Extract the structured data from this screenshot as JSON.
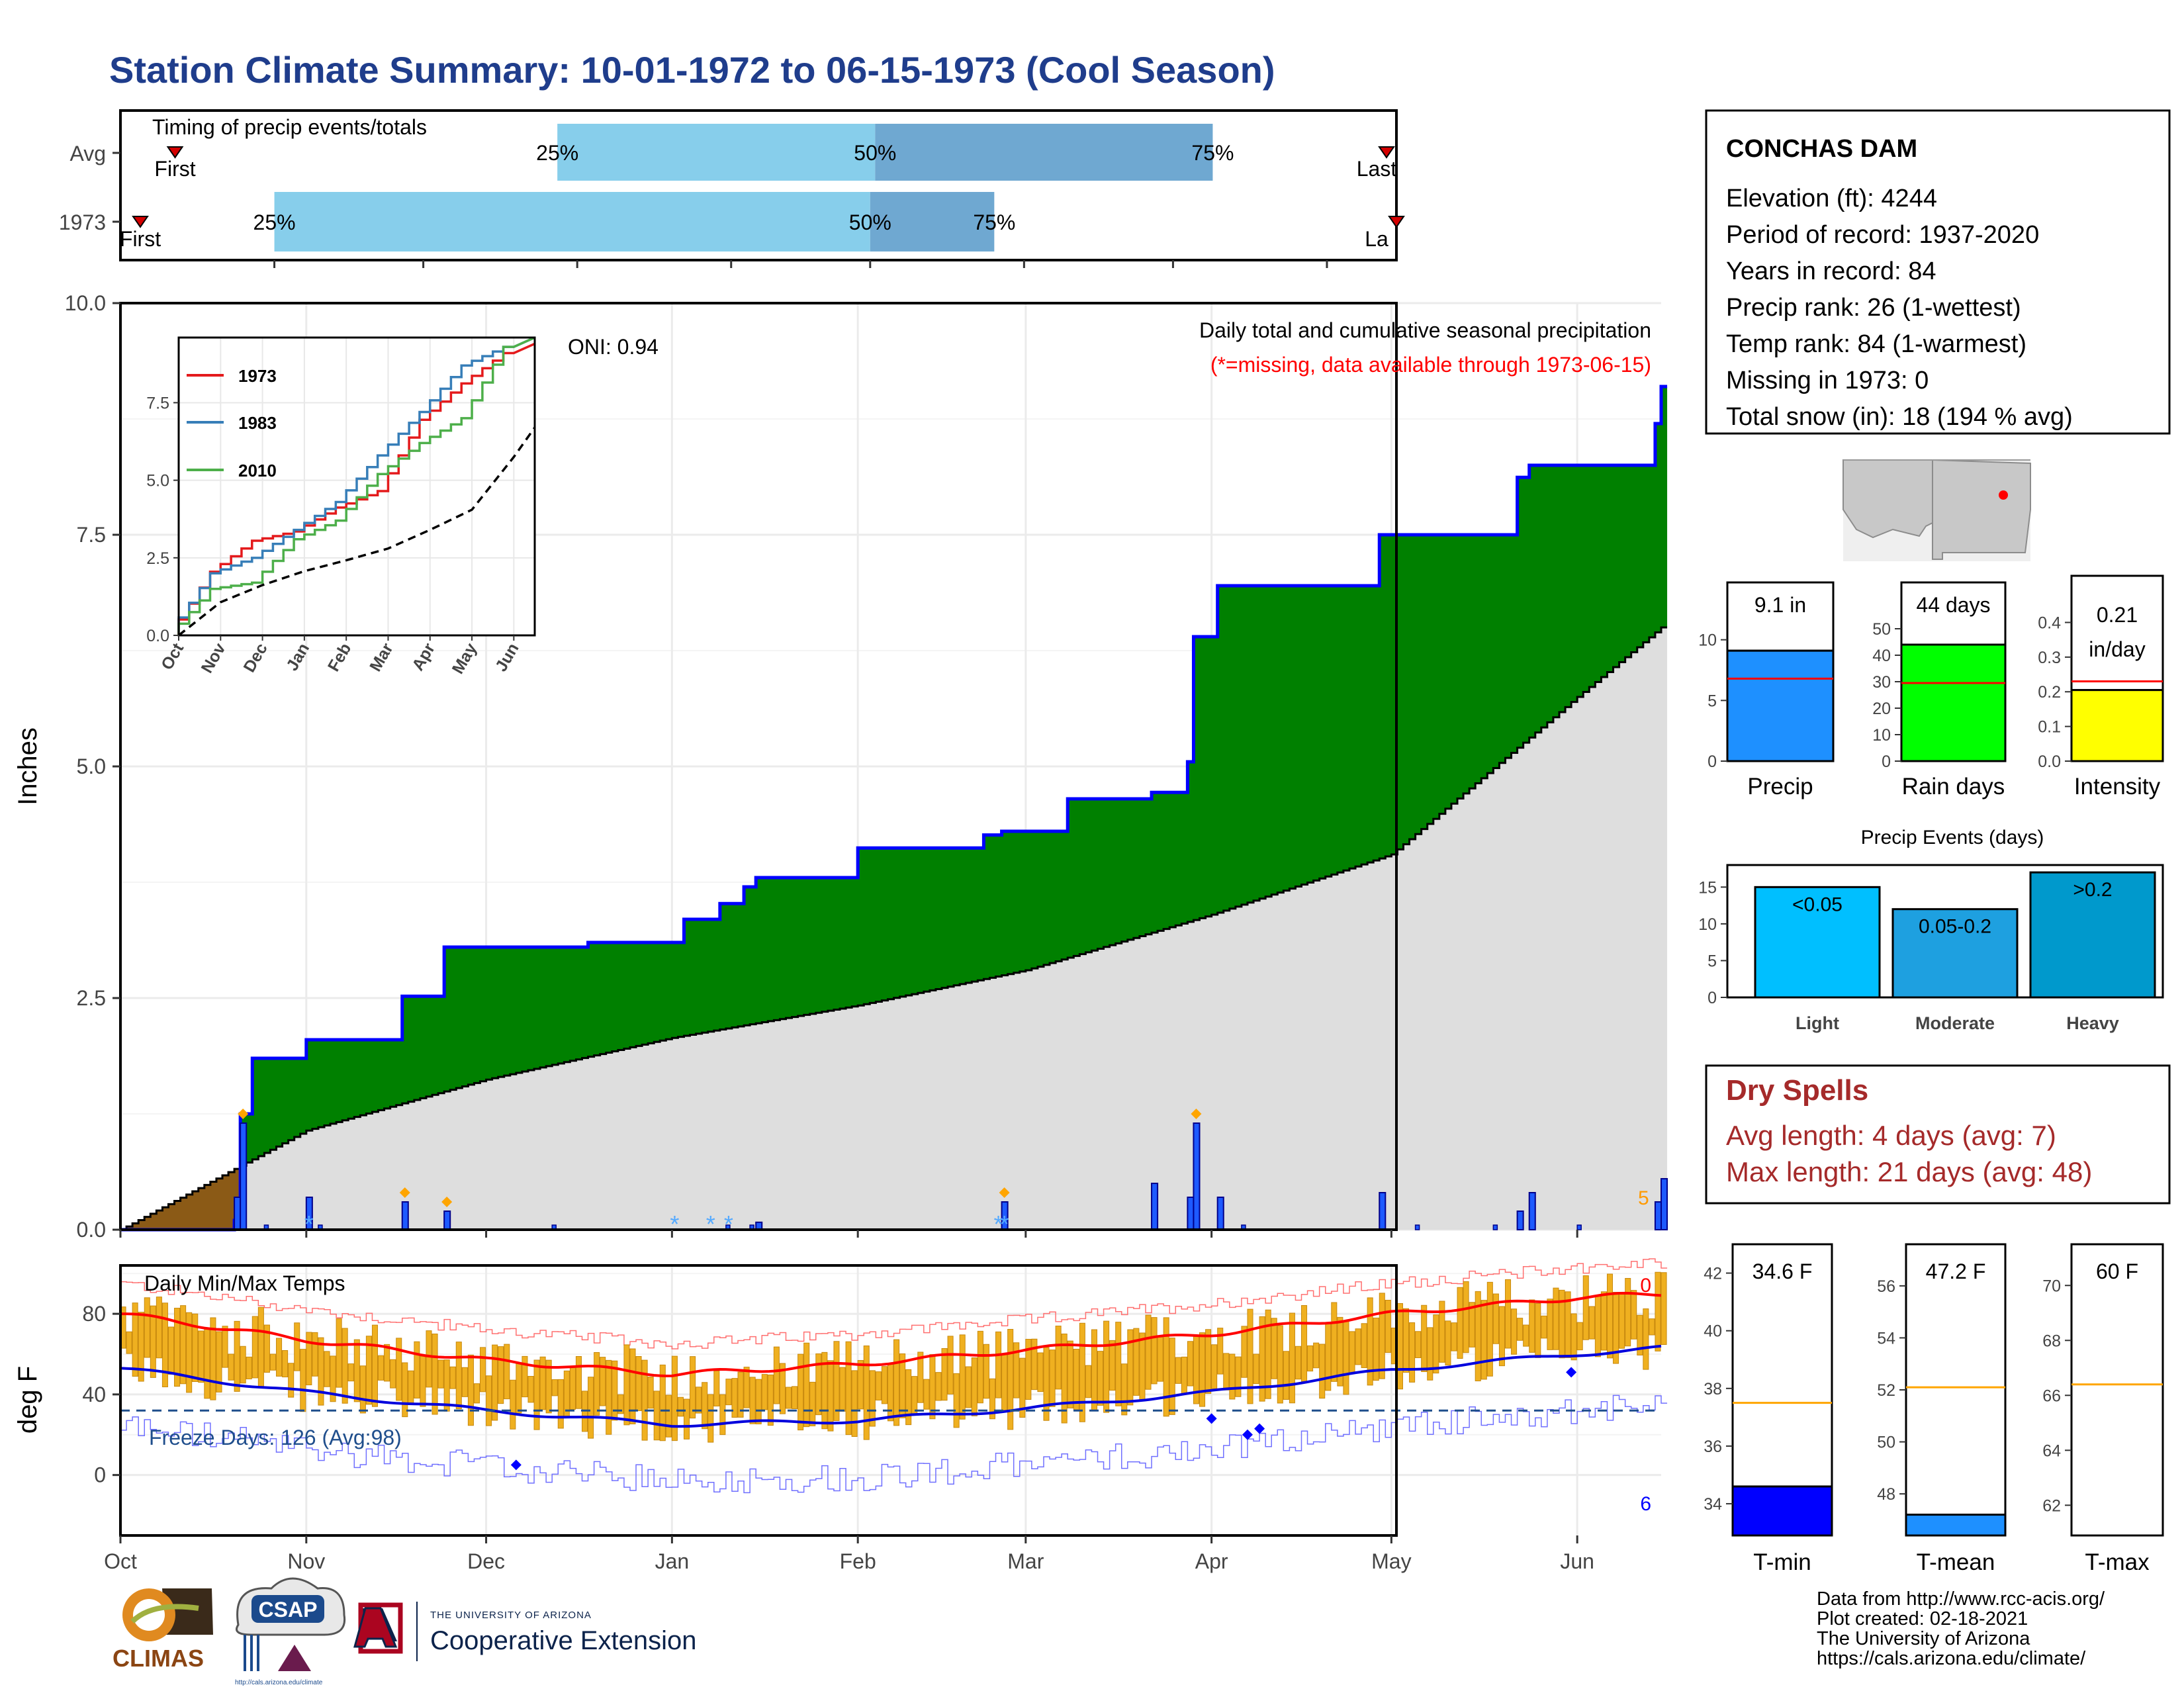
{
  "title": "Station Climate Summary: 10-01-1972 to 06-15-1973 (Cool Season)",
  "colors": {
    "title": "#1f3d8c",
    "light_blue": "#87ceeb",
    "steel_blue": "#6fa8d1",
    "green": "#008000",
    "grey_fill": "#dedede",
    "brown": "#8b5a16",
    "blue": "#0000ff",
    "red": "#ff0000",
    "orange": "#f0b020",
    "dry_red": "#a52a2a"
  },
  "timing_panel": {
    "label": "Timing of precip events/totals",
    "rows": [
      {
        "name": "Avg",
        "first_label": "First",
        "last_label": "Last",
        "first": "10-12",
        "last": "06-13",
        "p25": "12-28",
        "p50": "03-02",
        "p75": "05-09"
      },
      {
        "name": "1973",
        "first_label": "First",
        "last_label": "La",
        "first": "10-05",
        "last": "06-15",
        "p25": "11-01",
        "p50": "03-01",
        "p75": "03-26"
      }
    ],
    "pct_labels": [
      "25%",
      "50%",
      "75%"
    ]
  },
  "precip_panel": {
    "ylabel": "Inches",
    "yticks": [
      "0.0",
      "2.5",
      "5.0",
      "7.5",
      "10.0"
    ],
    "title_line1": "Daily total and cumulative seasonal precipitation",
    "title_line2": "(*=missing, data available through 1973-06-15)",
    "oni": "ONI: 0.94",
    "corner_count": "5"
  },
  "x_months": [
    "Oct",
    "Nov",
    "Dec",
    "Jan",
    "Feb",
    "Mar",
    "Apr",
    "May",
    "Jun"
  ],
  "inset": {
    "yticks": [
      "0.0",
      "2.5",
      "5.0",
      "7.5"
    ],
    "xticks": [
      "Oct",
      "Nov",
      "Dec",
      "Jan",
      "Feb",
      "Mar",
      "Apr",
      "May",
      "Jun"
    ],
    "legend": [
      {
        "name": "1973",
        "color": "#e41a1c"
      },
      {
        "name": "1983",
        "color": "#377eb8"
      },
      {
        "name": "2010",
        "color": "#4daf4a"
      }
    ]
  },
  "temp_panel": {
    "label": "Daily Min/Max Temps",
    "ylabel": "deg F",
    "yticks": [
      "0",
      "40",
      "80"
    ],
    "freeze_text": "Freeze Days: 126 (Avg:98)",
    "top_count": "0",
    "bottom_count": "6"
  },
  "station_box": {
    "name": "CONCHAS DAM",
    "lines": [
      "Elevation (ft): 4244",
      "Period of record: 1937-2020",
      "Years in record: 84",
      "Precip rank: 26 (1-wettest)",
      "Temp rank: 84 (1-warmest)",
      "Missing in 1973: 0",
      "Total snow (in): 18 (194 % avg)"
    ]
  },
  "mini_bars": [
    {
      "label": "Precip",
      "value_text": "9.1 in",
      "value": 9.1,
      "avg": 6.8,
      "ymax": 12,
      "yticks": [
        "0",
        "5",
        "10"
      ],
      "tick_vals": [
        0,
        5,
        10
      ],
      "color": "#1e90ff"
    },
    {
      "label": "Rain days",
      "value_text": "44 days",
      "value": 44,
      "avg": 29.5,
      "ymax": 55,
      "yticks": [
        "0",
        "10",
        "20",
        "30",
        "40",
        "50"
      ],
      "tick_vals": [
        0,
        10,
        20,
        30,
        40,
        50
      ],
      "color": "#00ff00"
    },
    {
      "label": "Intensity",
      "value_text": "0.21",
      "value_text2": "in/day",
      "value": 0.205,
      "avg": 0.23,
      "ymax": 0.42,
      "yticks": [
        "0.0",
        "0.1",
        "0.2",
        "0.3",
        "0.4"
      ],
      "tick_vals": [
        0,
        0.1,
        0.2,
        0.3,
        0.4
      ],
      "color": "#ffff00"
    }
  ],
  "precip_events": {
    "title": "Precip Events (days)",
    "yticks": [
      "0",
      "5",
      "10",
      "15"
    ],
    "tick_vals": [
      0,
      5,
      10,
      15
    ],
    "ymax": 18,
    "bars": [
      {
        "category": "Light",
        "label": "<0.05",
        "value": 15,
        "color": "#00bfff"
      },
      {
        "category": "Moderate",
        "label": "0.05-0.2",
        "value": 12,
        "color": "#1ea0e0"
      },
      {
        "category": "Heavy",
        "label": ">0.2",
        "value": 17,
        "color": "#0099cc"
      }
    ]
  },
  "dry_spells": {
    "title": "Dry Spells",
    "avg_line": "Avg length: 4 days (avg: 7)",
    "max_line": "Max length: 21 days (avg: 48)"
  },
  "temp_bars": [
    {
      "label": "T-min",
      "value_text": "34.6 F",
      "value": 34.6,
      "avg": 37.5,
      "ymin": 32.9,
      "ymax": 43,
      "yticks": [
        "34",
        "36",
        "38",
        "40",
        "42"
      ],
      "tick_vals": [
        34,
        36,
        38,
        40,
        42
      ],
      "color": "#0000ff"
    },
    {
      "label": "T-mean",
      "value_text": "47.2 F",
      "value": 47.2,
      "avg": 52.1,
      "ymin": 46.4,
      "ymax": 57.6,
      "yticks": [
        "48",
        "50",
        "52",
        "54",
        "56"
      ],
      "tick_vals": [
        48,
        50,
        52,
        54,
        56
      ],
      "color": "#1e90ff"
    },
    {
      "label": "T-max",
      "value_text": "60 F",
      "value": 60,
      "avg": 66.4,
      "ymin": 60.9,
      "ymax": 71.5,
      "yticks": [
        "62",
        "64",
        "66",
        "68",
        "70"
      ],
      "tick_vals": [
        62,
        64,
        66,
        68,
        70
      ],
      "color": "#ff0000"
    }
  ],
  "credits": [
    "Data from http://www.rcc-acis.org/",
    "Plot created: 02-18-2021",
    "The University of Arizona",
    "https://cals.arizona.edu/climate/"
  ],
  "logos": {
    "climas": "CLIMAS",
    "csap": "CSAP",
    "csap_url": "http://cals.arizona.edu/climate",
    "ua_small": "THE UNIVERSITY OF ARIZONA",
    "ua_big": "Cooperative Extension"
  },
  "chart_data": [
    {
      "type": "area",
      "title": "Daily total and cumulative seasonal precipitation",
      "ylabel": "Inches",
      "ylim": [
        0,
        10
      ],
      "x_range": [
        "1972-10-01",
        "1973-06-15"
      ],
      "series": [
        {
          "name": "1973",
          "x": [
            "1972-10-01",
            "1972-10-20",
            "1972-10-21",
            "1972-10-23",
            "1972-11-01",
            "1972-11-17",
            "1972-11-24",
            "1972-12-18",
            "1973-01-03",
            "1973-01-09",
            "1973-01-13",
            "1973-01-15",
            "1973-02-01",
            "1973-02-22",
            "1973-02-25",
            "1973-03-08",
            "1973-03-22",
            "1973-03-28",
            "1973-03-29",
            "1973-04-02",
            "1973-04-29",
            "1973-05-22",
            "1973-05-24",
            "1973-06-13",
            "1973-06-14",
            "1973-06-15"
          ],
          "values": [
            0.0,
            0.1,
            1.25,
            1.85,
            2.05,
            2.52,
            3.05,
            3.1,
            3.35,
            3.52,
            3.7,
            3.8,
            4.12,
            4.26,
            4.3,
            4.65,
            4.72,
            5.05,
            6.4,
            6.95,
            7.5,
            8.12,
            8.25,
            8.25,
            8.7,
            9.1
          ]
        },
        {
          "name": "Avg",
          "x": [
            "1972-10-01",
            "1972-11-01",
            "1972-12-01",
            "1973-01-01",
            "1973-02-01",
            "1973-03-01",
            "1973-04-01",
            "1973-05-01",
            "1973-06-01",
            "1973-06-15"
          ],
          "values": [
            0.0,
            1.07,
            1.62,
            2.07,
            2.42,
            2.8,
            3.4,
            4.05,
            5.75,
            6.5
          ]
        }
      ],
      "daily_precip": {
        "x": [
          "1972-10-20",
          "1972-10-21",
          "1972-11-01",
          "1972-11-17",
          "1972-11-24",
          "1973-01-15",
          "1973-02-25",
          "1973-03-22",
          "1973-03-28",
          "1973-03-29",
          "1973-04-02",
          "1973-04-29",
          "1973-05-22",
          "1973-05-24",
          "1973-06-14",
          "1973-06-15"
        ],
        "values": [
          0.35,
          1.15,
          0.35,
          0.3,
          0.2,
          0.08,
          0.3,
          0.5,
          0.35,
          1.15,
          0.35,
          0.4,
          0.2,
          0.4,
          0.3,
          0.55
        ]
      }
    },
    {
      "type": "line",
      "title": "Daily Min/Max Temps",
      "ylabel": "deg F",
      "x_range": [
        "1972-10-01",
        "1973-06-15"
      ],
      "series": [
        {
          "name": "Avg Max",
          "x": [
            "1972-10-01",
            "1972-11-01",
            "1972-12-01",
            "1973-01-01",
            "1973-02-01",
            "1973-03-01",
            "1973-04-01",
            "1973-05-01",
            "1973-06-01",
            "1973-06-15"
          ],
          "values": [
            80,
            67,
            57,
            50,
            55,
            62,
            70,
            80,
            88,
            90
          ]
        },
        {
          "name": "Avg Min",
          "x": [
            "1972-10-01",
            "1972-11-01",
            "1972-12-01",
            "1973-01-01",
            "1973-02-01",
            "1973-03-01",
            "1973-04-01",
            "1973-05-01",
            "1973-06-01",
            "1973-06-15"
          ],
          "values": [
            53,
            41,
            32,
            25,
            27,
            33,
            41,
            52,
            60,
            63
          ]
        },
        {
          "name": "Freeze line",
          "x": [
            "1972-10-01",
            "1973-06-15"
          ],
          "values": [
            32,
            32
          ]
        }
      ]
    },
    {
      "type": "line",
      "title": "",
      "xlabel": "",
      "ylim": [
        0,
        10
      ],
      "series": [
        {
          "name": "1973",
          "x": [
            "Oct",
            "Nov",
            "Dec",
            "Jan",
            "Feb",
            "Mar",
            "Apr",
            "May",
            "Jun"
          ],
          "values": [
            0.0,
            2.05,
            3.05,
            3.35,
            4.12,
            4.65,
            6.95,
            8.12,
            9.1
          ]
        },
        {
          "name": "1983",
          "x": [
            "Oct",
            "Nov",
            "Dec",
            "Jan",
            "Feb",
            "Mar",
            "Apr",
            "May",
            "Jun"
          ],
          "values": [
            0.1,
            2.0,
            2.5,
            3.4,
            4.3,
            5.8,
            7.2,
            8.7,
            9.3
          ]
        },
        {
          "name": "2010",
          "x": [
            "Oct",
            "Nov",
            "Dec",
            "Jan",
            "Feb",
            "Mar",
            "Apr",
            "May",
            "Jun"
          ],
          "values": [
            0.0,
            1.5,
            1.7,
            3.1,
            3.7,
            5.2,
            6.2,
            7.0,
            9.3
          ]
        },
        {
          "name": "Avg",
          "x": [
            "Oct",
            "Nov",
            "Dec",
            "Jan",
            "Feb",
            "Mar",
            "Apr",
            "May",
            "Jun"
          ],
          "values": [
            0.0,
            1.07,
            1.62,
            2.07,
            2.42,
            2.8,
            3.4,
            4.05,
            5.75
          ]
        }
      ]
    },
    {
      "type": "bar",
      "title": "Precip Events (days)",
      "categories": [
        "Light",
        "Moderate",
        "Heavy"
      ],
      "values": [
        15,
        12,
        17
      ],
      "ylim": [
        0,
        18
      ]
    }
  ]
}
